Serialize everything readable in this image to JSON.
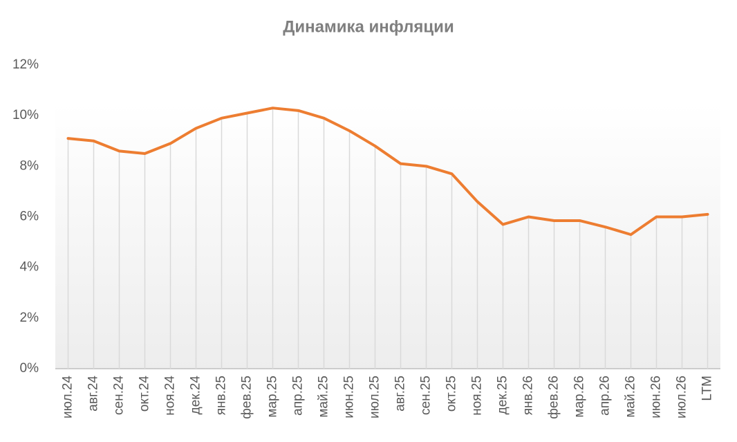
{
  "chart_data": {
    "type": "line",
    "title": "Динамика инфляции",
    "categories": [
      "июл.24",
      "авг.24",
      "сен.24",
      "окт.24",
      "ноя.24",
      "дек.24",
      "янв.25",
      "фев.25",
      "мар.25",
      "апр.25",
      "май.25",
      "июн.25",
      "июл.25",
      "авг.25",
      "сен.25",
      "окт.25",
      "ноя.25",
      "дек.25",
      "янв.26",
      "фев.26",
      "мар.26",
      "апр.26",
      "май.26",
      "июн.26",
      "июл.26",
      "LTM"
    ],
    "values": [
      9.1,
      9.0,
      8.6,
      8.5,
      8.9,
      9.5,
      9.9,
      10.1,
      10.3,
      10.2,
      9.9,
      9.4,
      8.8,
      8.1,
      8.0,
      7.7,
      6.6,
      5.7,
      6.0,
      5.85,
      5.85,
      5.6,
      5.3,
      6.0,
      6.0,
      6.1
    ],
    "color": "#ed7d31",
    "ylim": [
      0,
      12
    ],
    "yticks": [
      {
        "value": 0,
        "label": "0%"
      },
      {
        "value": 2,
        "label": "2%"
      },
      {
        "value": 4,
        "label": "4%"
      },
      {
        "value": 6,
        "label": "6%"
      },
      {
        "value": 8,
        "label": "8%"
      },
      {
        "value": 10,
        "label": "10%"
      },
      {
        "value": 12,
        "label": "12%"
      }
    ],
    "drop_lines": true
  }
}
